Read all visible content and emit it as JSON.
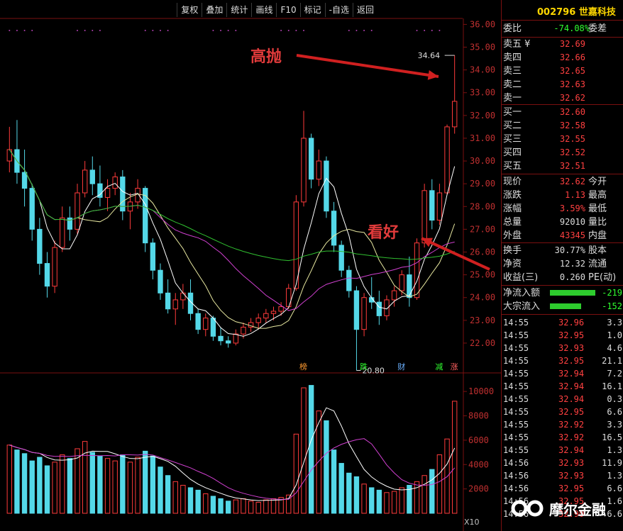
{
  "toolbar": [
    "复权",
    "叠加",
    "统计",
    "画线",
    "F10",
    "标记",
    "-自选",
    "返回"
  ],
  "stock": {
    "code": "002796",
    "name": "世嘉科技"
  },
  "quote": {
    "weibi_label": "委比",
    "weibi": "-74.08%",
    "weicha_label": "委差",
    "sell": [
      {
        "label": "卖五",
        "price": "32.69",
        "extra": "¥"
      },
      {
        "label": "卖四",
        "price": "32.66"
      },
      {
        "label": "卖三",
        "price": "32.65"
      },
      {
        "label": "卖二",
        "price": "32.63"
      },
      {
        "label": "卖一",
        "price": "32.62"
      }
    ],
    "buy": [
      {
        "label": "买一",
        "price": "32.60"
      },
      {
        "label": "买二",
        "price": "32.58"
      },
      {
        "label": "买三",
        "price": "32.55"
      },
      {
        "label": "买四",
        "price": "32.52"
      },
      {
        "label": "买五",
        "price": "32.51"
      }
    ],
    "stats": [
      {
        "label": "现价",
        "value": "32.62",
        "right": "今开",
        "cls": ""
      },
      {
        "label": "涨跌",
        "value": "1.13",
        "right": "最高",
        "cls": ""
      },
      {
        "label": "涨幅",
        "value": "3.59%",
        "right": "最低",
        "cls": ""
      },
      {
        "label": "总量",
        "value": "92010",
        "right": "量比",
        "cls": "w"
      },
      {
        "label": "外盘",
        "value": "43345",
        "right": "内盘",
        "cls": ""
      }
    ],
    "stats2": [
      {
        "label": "换手",
        "value": "30.77%",
        "right": "股本",
        "cls": "w"
      },
      {
        "label": "净资",
        "value": "12.32",
        "right": "流通",
        "cls": "w"
      },
      {
        "label": "收益(三)",
        "value": "0.260",
        "right": "PE(动)",
        "cls": "w"
      }
    ],
    "flow": [
      {
        "label": "净流入额",
        "value": "-219"
      },
      {
        "label": "大宗流入",
        "value": "-152"
      }
    ]
  },
  "ticks": [
    {
      "t": "14:55",
      "p": "32.96",
      "q": "3.3"
    },
    {
      "t": "14:55",
      "p": "32.95",
      "q": "1.0"
    },
    {
      "t": "14:55",
      "p": "32.93",
      "q": "4.6"
    },
    {
      "t": "14:55",
      "p": "32.95",
      "q": "21.1"
    },
    {
      "t": "14:55",
      "p": "32.94",
      "q": "7.2"
    },
    {
      "t": "14:55",
      "p": "32.94",
      "q": "16.1"
    },
    {
      "t": "14:55",
      "p": "32.94",
      "q": "0.3"
    },
    {
      "t": "14:55",
      "p": "32.95",
      "q": "6.6"
    },
    {
      "t": "14:55",
      "p": "32.92",
      "q": "3.3"
    },
    {
      "t": "14:55",
      "p": "32.92",
      "q": "16.5"
    },
    {
      "t": "14:55",
      "p": "32.94",
      "q": "1.3"
    },
    {
      "t": "14:56",
      "p": "32.93",
      "q": "11.9"
    },
    {
      "t": "14:56",
      "p": "32.93",
      "q": "1.3"
    },
    {
      "t": "14:56",
      "p": "32.95",
      "q": "6.6"
    },
    {
      "t": "14:56",
      "p": "32.95",
      "q": "1.6"
    },
    {
      "t": "14:56",
      "p": "32.90",
      "q": "6.6"
    }
  ],
  "annotations": {
    "top": "高抛",
    "mid": "看好"
  },
  "logo": "摩尔金融",
  "chart_data": {
    "type": "candlestick",
    "price_axis": {
      "ticks": [
        22,
        23,
        24,
        25,
        26,
        27,
        28,
        29,
        30,
        31,
        32,
        33,
        34,
        35,
        36
      ],
      "ylim": [
        21.5,
        36.2
      ]
    },
    "volume_axis": {
      "ticks": [
        2000,
        4000,
        6000,
        8000,
        10000
      ],
      "ylim": [
        0,
        11000
      ],
      "unit_label": "X10"
    },
    "marks": {
      "high": "34.64",
      "low": "20.80"
    },
    "events": [
      "榜",
      "跌",
      "财",
      "减",
      "涨"
    ],
    "candles": [
      [
        30,
        31.5,
        29.5,
        30.5
      ],
      [
        30.5,
        31.8,
        29,
        29.5
      ],
      [
        29.5,
        30.5,
        28,
        28.8
      ],
      [
        28.8,
        29,
        26.5,
        27
      ],
      [
        27,
        27.5,
        25,
        25.5
      ],
      [
        25.5,
        26,
        24,
        24.5
      ],
      [
        24.5,
        26.5,
        24.2,
        26.2
      ],
      [
        26.2,
        28,
        26,
        27.5
      ],
      [
        27.5,
        28,
        26.5,
        27
      ],
      [
        27,
        29,
        26.8,
        28.6
      ],
      [
        28.6,
        30,
        28.4,
        29.6
      ],
      [
        29.6,
        30.2,
        28.5,
        29
      ],
      [
        29,
        29.8,
        28,
        28.4
      ],
      [
        28.4,
        29.2,
        27.8,
        28.8
      ],
      [
        28.8,
        29.5,
        28.5,
        29.3
      ],
      [
        29.3,
        29.6,
        27.4,
        27.8
      ],
      [
        27.8,
        28.6,
        27,
        28.2
      ],
      [
        28.2,
        29.2,
        27.9,
        28.8
      ],
      [
        28.8,
        28.9,
        26,
        26.4
      ],
      [
        26.4,
        26.6,
        24.8,
        25.2
      ],
      [
        25.2,
        25.5,
        23.9,
        24.2
      ],
      [
        24.2,
        24.8,
        23.3,
        23.5
      ],
      [
        23.5,
        24.2,
        22.8,
        23.9
      ],
      [
        23.9,
        24.6,
        23.5,
        24.2
      ],
      [
        24.2,
        24.8,
        23,
        23.3
      ],
      [
        23.3,
        23.5,
        22.4,
        22.6
      ],
      [
        22.6,
        23.3,
        22.3,
        23.1
      ],
      [
        23.1,
        23.2,
        22.1,
        22.3
      ],
      [
        22.3,
        22.7,
        21.9,
        22.1
      ],
      [
        22.1,
        22.3,
        21.8,
        22
      ],
      [
        22,
        22.6,
        21.9,
        22.4
      ],
      [
        22.4,
        22.9,
        22.2,
        22.7
      ],
      [
        22.7,
        23.1,
        22.5,
        22.9
      ],
      [
        22.9,
        23.3,
        22.6,
        23.1
      ],
      [
        23.1,
        23.5,
        22.9,
        23.3
      ],
      [
        23.3,
        23.6,
        23,
        23.4
      ],
      [
        23.4,
        23.8,
        23.2,
        23.6
      ],
      [
        23.6,
        24.6,
        23.5,
        24.4
      ],
      [
        24.4,
        28.5,
        24.3,
        28.2
      ],
      [
        28.2,
        32.2,
        28,
        31
      ],
      [
        31,
        31.2,
        28.8,
        29.2
      ],
      [
        29.2,
        30.5,
        28.9,
        30
      ],
      [
        30,
        30.2,
        27.5,
        27.8
      ],
      [
        27.8,
        28.2,
        26,
        26.3
      ],
      [
        26.3,
        26.5,
        24.9,
        25.2
      ],
      [
        25.2,
        25.4,
        24,
        24.3
      ],
      [
        24.3,
        24.5,
        20.8,
        22.6
      ],
      [
        22.6,
        24.2,
        22.3,
        24
      ],
      [
        24,
        24.9,
        23.5,
        23.8
      ],
      [
        23.8,
        24.3,
        22.8,
        23.2
      ],
      [
        23.2,
        24.1,
        23,
        23.9
      ],
      [
        23.9,
        24.5,
        23.6,
        24.3
      ],
      [
        24.3,
        25.2,
        24.1,
        25
      ],
      [
        25,
        25.8,
        23.6,
        24
      ],
      [
        24,
        26.6,
        23.9,
        26.4
      ],
      [
        26.4,
        29,
        26.2,
        28.7
      ],
      [
        28.7,
        29.2,
        27,
        27.4
      ],
      [
        27.4,
        29,
        27.2,
        28.6
      ],
      [
        28.6,
        31.6,
        28.5,
        31.5
      ],
      [
        31.5,
        34.64,
        31.2,
        32.62
      ]
    ],
    "volume": [
      5600,
      5200,
      4900,
      4300,
      4600,
      3900,
      4200,
      4800,
      4500,
      5300,
      5900,
      5000,
      4700,
      4500,
      4300,
      4800,
      4200,
      4600,
      5100,
      4700,
      3800,
      3100,
      2600,
      2300,
      2100,
      1900,
      1600,
      1400,
      1200,
      1000,
      1100,
      1200,
      1000,
      900,
      1100,
      1200,
      1300,
      1500,
      6500,
      10300,
      10500,
      8400,
      7600,
      5200,
      4100,
      3300,
      3000,
      2400,
      2100,
      1900,
      1700,
      1800,
      2100,
      2300,
      2600,
      3100,
      3600,
      4800,
      6100,
      9200
    ]
  }
}
